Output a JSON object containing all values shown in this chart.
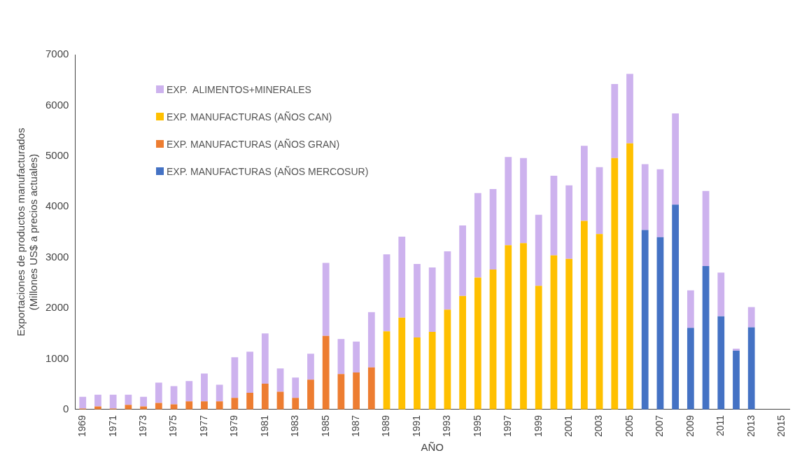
{
  "chart_data": {
    "type": "bar",
    "stacked": true,
    "xlabel": "AÑO",
    "ylabel": "Exportaciones de productos manufacturados\n(Millones US$ a precios actuales)",
    "categories": [
      "1969",
      null,
      "1971",
      null,
      "1973",
      null,
      "1975",
      null,
      "1977",
      null,
      "1979",
      null,
      "1981",
      null,
      "1983",
      null,
      "1985",
      null,
      "1987",
      null,
      "1989",
      null,
      "1991",
      null,
      "1993",
      null,
      "1995",
      null,
      "1997",
      null,
      "1999",
      null,
      "2001",
      null,
      "2003",
      null,
      "2005",
      null,
      "2007",
      null,
      "2009",
      null,
      "2011",
      null,
      "2013",
      null,
      "2015"
    ],
    "series": [
      {
        "name": "EXP. MANUFACTURAS (AÑOS MERCOSUR)",
        "color": "#4472c4",
        "values": [
          null,
          null,
          null,
          null,
          null,
          null,
          null,
          null,
          null,
          null,
          null,
          null,
          null,
          null,
          null,
          null,
          null,
          null,
          null,
          null,
          null,
          null,
          null,
          null,
          null,
          null,
          null,
          null,
          null,
          null,
          null,
          null,
          null,
          null,
          null,
          null,
          null,
          3540,
          3400,
          4040,
          1610,
          2830,
          1840,
          1160,
          1620,
          null,
          null
        ]
      },
      {
        "name": "EXP. MANUFACTURAS (AÑOS GRAN)",
        "color": "#ed7d31",
        "values": [
          20,
          60,
          20,
          90,
          60,
          130,
          100,
          160,
          160,
          160,
          230,
          330,
          510,
          350,
          230,
          590,
          1450,
          700,
          730,
          830,
          null,
          null,
          null,
          null,
          null,
          null,
          null,
          null,
          null,
          null,
          null,
          null,
          null,
          null,
          null,
          null,
          null,
          null,
          null,
          null,
          null,
          null,
          null,
          null,
          null,
          null,
          null
        ]
      },
      {
        "name": "EXP. MANUFACTURAS (AÑOS CAN)",
        "color": "#ffc000",
        "values": [
          null,
          null,
          null,
          null,
          null,
          null,
          null,
          null,
          null,
          null,
          null,
          null,
          null,
          null,
          null,
          null,
          null,
          null,
          null,
          null,
          1540,
          1810,
          1420,
          1530,
          1970,
          2240,
          2600,
          2760,
          3240,
          3280,
          2440,
          3040,
          2970,
          3720,
          3460,
          4960,
          5250,
          null,
          null,
          null,
          null,
          null,
          null,
          null,
          null,
          null,
          null
        ]
      },
      {
        "name": "EXP.  ALIMENTOS+MINERALES",
        "color": "#cdb2ee",
        "values": [
          230,
          230,
          270,
          200,
          190,
          400,
          360,
          400,
          550,
          330,
          800,
          810,
          990,
          460,
          400,
          510,
          1440,
          690,
          610,
          1090,
          1520,
          1600,
          1450,
          1270,
          1150,
          1390,
          1670,
          1590,
          1740,
          1680,
          1400,
          1570,
          1450,
          1480,
          1320,
          1460,
          1370,
          1300,
          1340,
          1800,
          740,
          1480,
          860,
          40,
          400,
          null,
          null
        ]
      }
    ],
    "ylim": [
      0,
      7000
    ],
    "yticks": [
      0,
      1000,
      2000,
      3000,
      4000,
      5000,
      6000,
      7000
    ],
    "grid": false,
    "legend": "top left"
  }
}
